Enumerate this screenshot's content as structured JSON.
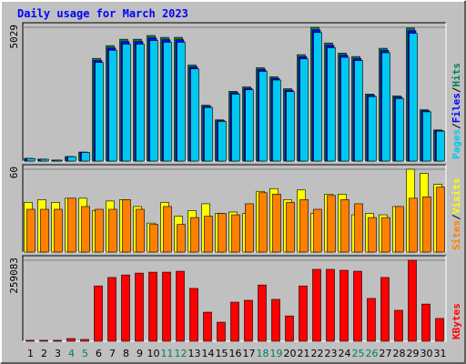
{
  "chart_data": [
    {
      "type": "bar",
      "title": "Daily usage for March 2023",
      "legend_separator": "/",
      "ylim": [
        0,
        5029
      ],
      "yticks": [
        5029
      ],
      "series": [
        {
          "name": "Hits",
          "color": "#00805c",
          "values": [
            100,
            70,
            35,
            170,
            340,
            3860,
            4340,
            4580,
            4580,
            4720,
            4650,
            4650,
            3610,
            2100,
            1550,
            2620,
            2790,
            3510,
            3170,
            2720,
            4000,
            5029,
            4440,
            4060,
            3930,
            2520,
            4240,
            2450,
            5000,
            1930,
            1170
          ]
        },
        {
          "name": "Files",
          "color": "#0000ff",
          "values": [
            98,
            69,
            34,
            167,
            333,
            3780,
            4250,
            4490,
            4490,
            4625,
            4560,
            4560,
            3540,
            2060,
            1520,
            2570,
            2730,
            3440,
            3105,
            2665,
            3920,
            4930,
            4350,
            3980,
            3850,
            2470,
            4155,
            2400,
            4900,
            1890,
            1145
          ]
        },
        {
          "name": "Pages",
          "color": "#00c8f0",
          "values": [
            96,
            67,
            34,
            163,
            326,
            3705,
            4165,
            4395,
            4395,
            4530,
            4465,
            4465,
            3465,
            2015,
            1490,
            2515,
            2680,
            3370,
            3045,
            2610,
            3840,
            4830,
            4260,
            3900,
            3775,
            2420,
            4070,
            2350,
            4800,
            1850,
            1125
          ]
        }
      ]
    },
    {
      "type": "bar",
      "ylim": [
        0,
        60
      ],
      "yticks": [
        60
      ],
      "series": [
        {
          "name": "Visits",
          "color": "#ffff00",
          "values": [
            36,
            38,
            36,
            39,
            39,
            30,
            37,
            38,
            33,
            21,
            36,
            26,
            30,
            35,
            28,
            29,
            28,
            44,
            46,
            38,
            45,
            28,
            42,
            42,
            27,
            28,
            27,
            33,
            60,
            57,
            49
          ]
        },
        {
          "name": "Sites",
          "color": "#ff8000",
          "values": [
            31,
            31,
            31,
            39,
            33,
            31,
            31,
            38,
            31,
            20,
            33,
            20,
            25,
            26,
            28,
            27,
            35,
            43,
            42,
            36,
            38,
            31,
            41,
            38,
            35,
            25,
            25,
            33,
            39,
            40,
            47
          ]
        }
      ]
    },
    {
      "type": "bar",
      "ylim": [
        0,
        259083
      ],
      "yticks": [
        259083
      ],
      "categories": [
        "1",
        "2",
        "3",
        "4",
        "5",
        "6",
        "7",
        "8",
        "9",
        "10",
        "11",
        "12",
        "13",
        "14",
        "15",
        "16",
        "17",
        "18",
        "19",
        "20",
        "21",
        "22",
        "23",
        "24",
        "25",
        "26",
        "27",
        "28",
        "29",
        "30",
        "31"
      ],
      "category_colors": [
        "#000000",
        "#000000",
        "#000000",
        "#00805c",
        "#00805c",
        "#000000",
        "#000000",
        "#000000",
        "#000000",
        "#000000",
        "#00805c",
        "#00805c",
        "#000000",
        "#000000",
        "#000000",
        "#000000",
        "#000000",
        "#00805c",
        "#00805c",
        "#000000",
        "#000000",
        "#000000",
        "#000000",
        "#000000",
        "#00805c",
        "#00805c",
        "#000000",
        "#000000",
        "#000000",
        "#000000",
        "#000000"
      ],
      "series": [
        {
          "name": "KBytes",
          "color": "#ff0000",
          "values": [
            3000,
            3000,
            3000,
            8700,
            5800,
            177000,
            204000,
            212000,
            218000,
            221000,
            221000,
            224000,
            169000,
            93000,
            61000,
            125000,
            131000,
            180000,
            134000,
            81000,
            177000,
            230000,
            230000,
            227000,
            224000,
            137000,
            204000,
            99000,
            259083,
            119000,
            73000
          ]
        }
      ]
    }
  ]
}
